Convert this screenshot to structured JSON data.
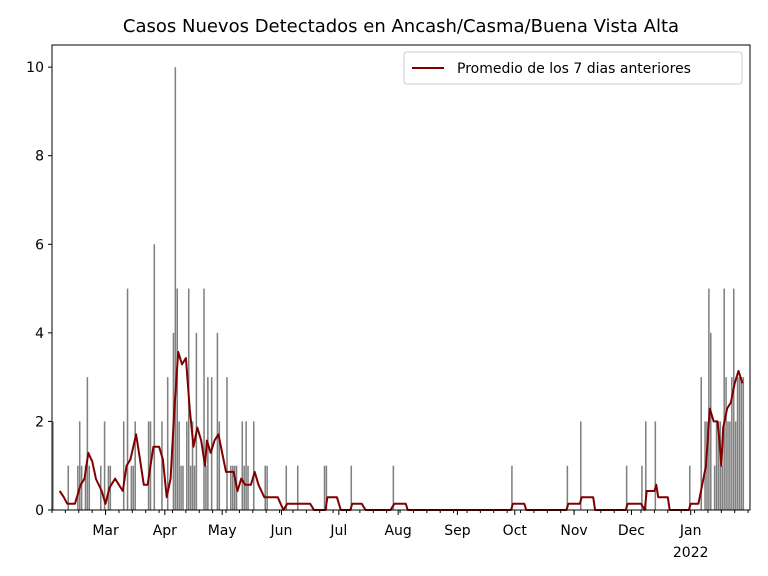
{
  "chart_data": {
    "type": "bar",
    "title": "Casos Nuevos Detectados en Ancash/Casma/Buena Vista Alta",
    "xlabel": "",
    "ylabel": "",
    "x_range": [
      "2021-02-01",
      "2022-02-01"
    ],
    "ylim": [
      0,
      10.5
    ],
    "y_ticks": [
      0,
      2,
      4,
      6,
      8,
      10
    ],
    "x_ticks": [
      {
        "date": "2021-03-01",
        "label": "Mar"
      },
      {
        "date": "2021-04-01",
        "label": "Apr"
      },
      {
        "date": "2021-05-01",
        "label": "May"
      },
      {
        "date": "2021-06-01",
        "label": "Jun"
      },
      {
        "date": "2021-07-01",
        "label": "Jul"
      },
      {
        "date": "2021-08-01",
        "label": "Aug"
      },
      {
        "date": "2021-09-01",
        "label": "Sep"
      },
      {
        "date": "2021-10-01",
        "label": "Oct"
      },
      {
        "date": "2021-11-01",
        "label": "Nov"
      },
      {
        "date": "2021-12-01",
        "label": "Dec"
      },
      {
        "date": "2022-01-01",
        "label": "Jan",
        "sublabel": "2022"
      }
    ],
    "grid": false,
    "legend_position": "top-right",
    "colors": {
      "bars": "#808080",
      "line": "#800000"
    },
    "series": [
      {
        "type": "bar",
        "points": [
          [
            "2021-02-01",
            2
          ],
          [
            "2021-02-09",
            1
          ],
          [
            "2021-02-14",
            1
          ],
          [
            "2021-02-15",
            2
          ],
          [
            "2021-02-16",
            1
          ],
          [
            "2021-02-18",
            1
          ],
          [
            "2021-02-19",
            3
          ],
          [
            "2021-02-20",
            1
          ],
          [
            "2021-02-26",
            1
          ],
          [
            "2021-02-28",
            2
          ],
          [
            "2021-03-02",
            1
          ],
          [
            "2021-03-03",
            1
          ],
          [
            "2021-03-10",
            2
          ],
          [
            "2021-03-12",
            5
          ],
          [
            "2021-03-14",
            1
          ],
          [
            "2021-03-15",
            1
          ],
          [
            "2021-03-16",
            2
          ],
          [
            "2021-03-23",
            2
          ],
          [
            "2021-03-24",
            2
          ],
          [
            "2021-03-26",
            6
          ],
          [
            "2021-03-30",
            2
          ],
          [
            "2021-04-02",
            3
          ],
          [
            "2021-04-05",
            4
          ],
          [
            "2021-04-06",
            10
          ],
          [
            "2021-04-07",
            5
          ],
          [
            "2021-04-08",
            2
          ],
          [
            "2021-04-09",
            1
          ],
          [
            "2021-04-10",
            1
          ],
          [
            "2021-04-12",
            2
          ],
          [
            "2021-04-13",
            5
          ],
          [
            "2021-04-14",
            1
          ],
          [
            "2021-04-15",
            2
          ],
          [
            "2021-04-16",
            1
          ],
          [
            "2021-04-17",
            4
          ],
          [
            "2021-04-21",
            5
          ],
          [
            "2021-04-22",
            1
          ],
          [
            "2021-04-23",
            3
          ],
          [
            "2021-04-25",
            3
          ],
          [
            "2021-04-28",
            4
          ],
          [
            "2021-04-29",
            2
          ],
          [
            "2021-05-03",
            3
          ],
          [
            "2021-05-05",
            1
          ],
          [
            "2021-05-06",
            1
          ],
          [
            "2021-05-07",
            1
          ],
          [
            "2021-05-08",
            1
          ],
          [
            "2021-05-11",
            2
          ],
          [
            "2021-05-12",
            1
          ],
          [
            "2021-05-13",
            2
          ],
          [
            "2021-05-14",
            1
          ],
          [
            "2021-05-17",
            2
          ],
          [
            "2021-05-23",
            1
          ],
          [
            "2021-05-24",
            1
          ],
          [
            "2021-06-03",
            1
          ],
          [
            "2021-06-09",
            1
          ],
          [
            "2021-06-23",
            1
          ],
          [
            "2021-06-24",
            1
          ],
          [
            "2021-07-07",
            1
          ],
          [
            "2021-07-29",
            1
          ],
          [
            "2021-09-29",
            1
          ],
          [
            "2021-10-28",
            1
          ],
          [
            "2021-11-04",
            2
          ],
          [
            "2021-11-28",
            1
          ],
          [
            "2021-12-06",
            1
          ],
          [
            "2021-12-08",
            2
          ],
          [
            "2021-12-13",
            2
          ],
          [
            "2021-12-31",
            1
          ],
          [
            "2022-01-06",
            3
          ],
          [
            "2022-01-08",
            2
          ],
          [
            "2022-01-09",
            2
          ],
          [
            "2022-01-10",
            5
          ],
          [
            "2022-01-11",
            4
          ],
          [
            "2022-01-13",
            1
          ],
          [
            "2022-01-14",
            2
          ],
          [
            "2022-01-15",
            2
          ],
          [
            "2022-01-16",
            2
          ],
          [
            "2022-01-17",
            1
          ],
          [
            "2022-01-18",
            5
          ],
          [
            "2022-01-19",
            3
          ],
          [
            "2022-01-20",
            2
          ],
          [
            "2022-01-21",
            2
          ],
          [
            "2022-01-22",
            3
          ],
          [
            "2022-01-23",
            5
          ],
          [
            "2022-01-24",
            2
          ],
          [
            "2022-01-25",
            3
          ],
          [
            "2022-01-26",
            3
          ],
          [
            "2022-01-27",
            3
          ],
          [
            "2022-01-28",
            3
          ]
        ]
      },
      {
        "type": "line",
        "name": "Promedio de los 7 dias anteriores",
        "points": [
          [
            "2021-02-05",
            0.43
          ],
          [
            "2021-02-07",
            0.3
          ],
          [
            "2021-02-09",
            0.14
          ],
          [
            "2021-02-13",
            0.14
          ],
          [
            "2021-02-16",
            0.57
          ],
          [
            "2021-02-18",
            0.71
          ],
          [
            "2021-02-20",
            1.29
          ],
          [
            "2021-02-22",
            1.1
          ],
          [
            "2021-02-24",
            0.7
          ],
          [
            "2021-02-27",
            0.43
          ],
          [
            "2021-03-01",
            0.14
          ],
          [
            "2021-03-03",
            0.5
          ],
          [
            "2021-03-06",
            0.71
          ],
          [
            "2021-03-08",
            0.57
          ],
          [
            "2021-03-10",
            0.43
          ],
          [
            "2021-03-12",
            1.0
          ],
          [
            "2021-03-14",
            1.14
          ],
          [
            "2021-03-17",
            1.71
          ],
          [
            "2021-03-19",
            1.14
          ],
          [
            "2021-03-21",
            0.57
          ],
          [
            "2021-03-23",
            0.57
          ],
          [
            "2021-03-26",
            1.43
          ],
          [
            "2021-03-29",
            1.43
          ],
          [
            "2021-03-31",
            1.14
          ],
          [
            "2021-04-02",
            0.29
          ],
          [
            "2021-04-04",
            0.71
          ],
          [
            "2021-04-06",
            2.29
          ],
          [
            "2021-04-08",
            3.57
          ],
          [
            "2021-04-10",
            3.29
          ],
          [
            "2021-04-12",
            3.43
          ],
          [
            "2021-04-14",
            2.29
          ],
          [
            "2021-04-16",
            1.43
          ],
          [
            "2021-04-18",
            1.86
          ],
          [
            "2021-04-20",
            1.57
          ],
          [
            "2021-04-22",
            1.0
          ],
          [
            "2021-04-23",
            1.57
          ],
          [
            "2021-04-25",
            1.29
          ],
          [
            "2021-04-27",
            1.57
          ],
          [
            "2021-04-29",
            1.71
          ],
          [
            "2021-05-01",
            1.29
          ],
          [
            "2021-05-03",
            0.86
          ],
          [
            "2021-05-05",
            0.86
          ],
          [
            "2021-05-07",
            0.86
          ],
          [
            "2021-05-09",
            0.43
          ],
          [
            "2021-05-11",
            0.71
          ],
          [
            "2021-05-13",
            0.57
          ],
          [
            "2021-05-16",
            0.57
          ],
          [
            "2021-05-18",
            0.86
          ],
          [
            "2021-05-20",
            0.57
          ],
          [
            "2021-05-23",
            0.29
          ],
          [
            "2021-05-26",
            0.29
          ],
          [
            "2021-05-30",
            0.29
          ],
          [
            "2021-06-02",
            0.0
          ],
          [
            "2021-06-04",
            0.14
          ],
          [
            "2021-06-09",
            0.14
          ],
          [
            "2021-06-16",
            0.14
          ],
          [
            "2021-06-18",
            0.0
          ],
          [
            "2021-06-24",
            0.0
          ],
          [
            "2021-06-25",
            0.29
          ],
          [
            "2021-06-30",
            0.29
          ],
          [
            "2021-07-02",
            0.0
          ],
          [
            "2021-07-07",
            0.0
          ],
          [
            "2021-07-08",
            0.14
          ],
          [
            "2021-07-13",
            0.14
          ],
          [
            "2021-07-15",
            0.0
          ],
          [
            "2021-07-28",
            0.0
          ],
          [
            "2021-07-30",
            0.14
          ],
          [
            "2021-08-05",
            0.14
          ],
          [
            "2021-08-06",
            0.0
          ],
          [
            "2021-09-29",
            0.0
          ],
          [
            "2021-09-30",
            0.14
          ],
          [
            "2021-10-06",
            0.14
          ],
          [
            "2021-10-07",
            0.0
          ],
          [
            "2021-10-28",
            0.0
          ],
          [
            "2021-10-29",
            0.14
          ],
          [
            "2021-11-04",
            0.14
          ],
          [
            "2021-11-05",
            0.29
          ],
          [
            "2021-11-11",
            0.29
          ],
          [
            "2021-11-12",
            0.0
          ],
          [
            "2021-11-28",
            0.0
          ],
          [
            "2021-11-29",
            0.14
          ],
          [
            "2021-12-06",
            0.14
          ],
          [
            "2021-12-08",
            0.0
          ],
          [
            "2021-12-09",
            0.43
          ],
          [
            "2021-12-13",
            0.43
          ],
          [
            "2021-12-14",
            0.57
          ],
          [
            "2021-12-15",
            0.29
          ],
          [
            "2021-12-20",
            0.29
          ],
          [
            "2021-12-21",
            0.0
          ],
          [
            "2021-12-31",
            0.0
          ],
          [
            "2022-01-01",
            0.14
          ],
          [
            "2022-01-05",
            0.14
          ],
          [
            "2022-01-07",
            0.57
          ],
          [
            "2022-01-09",
            1.0
          ],
          [
            "2022-01-11",
            2.29
          ],
          [
            "2022-01-13",
            2.0
          ],
          [
            "2022-01-15",
            2.0
          ],
          [
            "2022-01-16",
            1.57
          ],
          [
            "2022-01-17",
            1.0
          ],
          [
            "2022-01-18",
            1.86
          ],
          [
            "2022-01-20",
            2.29
          ],
          [
            "2022-01-22",
            2.43
          ],
          [
            "2022-01-24",
            2.86
          ],
          [
            "2022-01-26",
            3.14
          ],
          [
            "2022-01-28",
            2.86
          ]
        ]
      }
    ]
  }
}
